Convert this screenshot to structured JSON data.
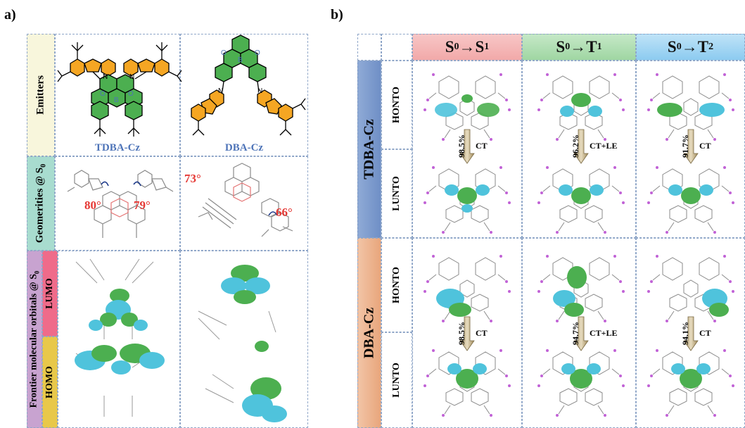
{
  "panel_a": {
    "label": "a)",
    "row_labels": {
      "emitters": "Emitters",
      "geometries": "Geomerities @ S",
      "geometries_sub": "0",
      "fmo": "Frontier molecular orbitals @ S",
      "fmo_sub": "0",
      "lumo": "LUMO",
      "homo": "HOMO"
    },
    "molecules": [
      "TDBA-Cz",
      "DBA-Cz"
    ],
    "angles": {
      "tdba_left": "80°",
      "tdba_right": "79°",
      "dba_left": "73°",
      "dba_right": "66°"
    }
  },
  "panel_b": {
    "label": "b)",
    "columns": [
      {
        "main": "S",
        "sub": "0",
        "arrow": "→",
        "target": "S",
        "target_sub": "1"
      },
      {
        "main": "S",
        "sub": "0",
        "arrow": "→",
        "target": "T",
        "target_sub": "1"
      },
      {
        "main": "S",
        "sub": "0",
        "arrow": "→",
        "target": "T",
        "target_sub": "2"
      }
    ],
    "rows": [
      {
        "molecule": "TDBA-Cz",
        "honto": "HONTO",
        "lunto": "LUNTO",
        "transitions": [
          {
            "percent": "98.5%",
            "type": "CT"
          },
          {
            "percent": "96.2%",
            "type": "CT+LE"
          },
          {
            "percent": "91.7%",
            "type": "CT"
          }
        ]
      },
      {
        "molecule": "DBA-Cz",
        "honto": "HONTO",
        "lunto": "LUNTO",
        "transitions": [
          {
            "percent": "98.5%",
            "type": "CT"
          },
          {
            "percent": "94.7%",
            "type": "CT+LE"
          },
          {
            "percent": "94.1%",
            "type": "CT"
          }
        ]
      }
    ]
  },
  "colors": {
    "grid_border": "#8fa6c8",
    "emitters_bg": "#f8f6dc",
    "geom_bg": "#a8dccf",
    "fmo_bg": "#c8a3d0",
    "lumo_bg": "#ef6b8a",
    "homo_bg": "#e8c84a",
    "carbazole": "#f5a623",
    "acceptor": "#4caf50",
    "label_blue": "#4e74b8",
    "angle_red": "#e53935",
    "hdr_s1": "#f2a9a9",
    "hdr_t1": "#9fd6a2",
    "hdr_t2": "#8ccbf0",
    "tdba_band": "#6f8fc6",
    "dba_band": "#e8a67c",
    "orbital_green": "#4caf50",
    "orbital_cyan": "#4fc3dc"
  }
}
